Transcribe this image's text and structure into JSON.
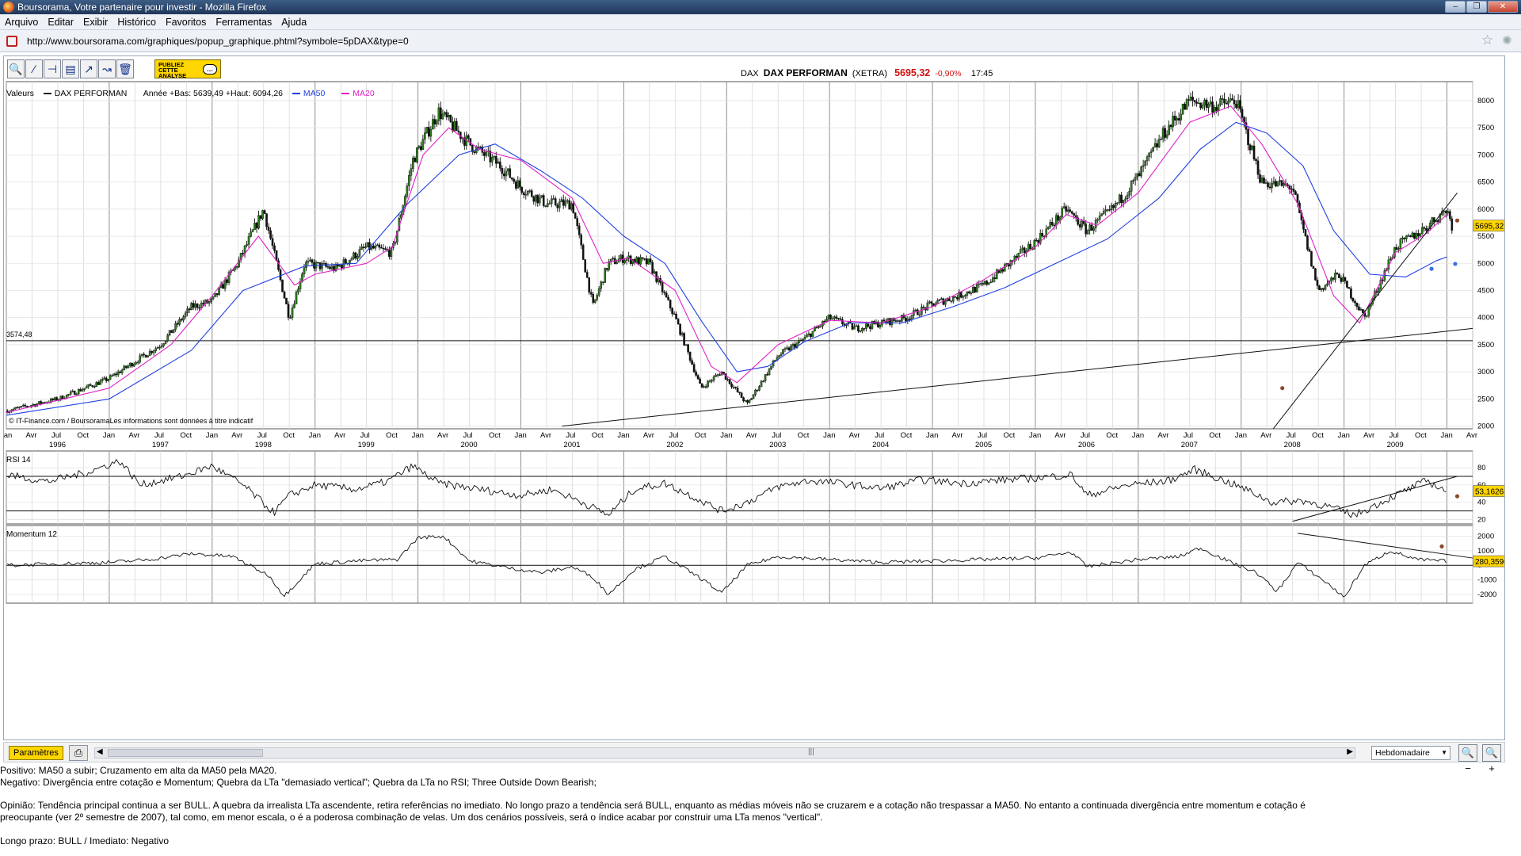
{
  "window": {
    "title": "Boursorama, Votre partenaire pour investir - Mozilla Firefox"
  },
  "menu": [
    "Arquivo",
    "Editar",
    "Exibir",
    "Histórico",
    "Favoritos",
    "Ferramentas",
    "Ajuda"
  ],
  "address": {
    "url": "http://www.boursorama.com/graphiques/popup_graphique.phtml?symbole=5pDAX&type=0"
  },
  "toolbar": {
    "publiez_label": "PUBLIEZ CETTE ANALYSE"
  },
  "quote": {
    "market": "DAX",
    "name": "DAX PERFORMAN",
    "exchange": "(XETRA)",
    "price": "5695,32",
    "change": "-0,90%",
    "time": "17:45"
  },
  "legend": {
    "values_label": "Valeurs",
    "series_label": "DAX PERFORMAN",
    "range_label": "Année +Bas: 5639,49 +Haut: 6094,26",
    "ma50_label": "MA50",
    "ma20_label": "MA20"
  },
  "colors": {
    "price": "#1a1a1a",
    "candle_up": "#2e7d1e",
    "candle_down": "#111111",
    "ma50": "#1f3fe0",
    "ma20": "#e020c8",
    "dot_brown": "#8b4a2e",
    "dot_blue": "#3d6fe0"
  },
  "chart_data": [
    {
      "type": "line",
      "title": "DAX PERFORMAN (XETRA) weekly",
      "source_note": "© IT-Finance.com / BoursoramaLes informations sont données à titre indicatif",
      "current_value_label": "5695,32",
      "horizontal_line_label": "3574,48",
      "horizontal_line_value": 3574.48,
      "ylim": [
        1950,
        8350
      ],
      "y_ticks": [
        2000,
        2500,
        3000,
        3500,
        4000,
        4500,
        5000,
        5500,
        6000,
        6500,
        7000,
        7500,
        8000
      ],
      "x_range": [
        1996.0,
        2010.25
      ],
      "month_ticks": [
        "Jan",
        "Avr",
        "Jul",
        "Oct"
      ],
      "year_labels": [
        "1996",
        "1997",
        "1998",
        "1999",
        "2000",
        "2001",
        "2002",
        "2003",
        "2004",
        "2005",
        "2006",
        "2007",
        "2008",
        "2009"
      ],
      "series": [
        {
          "name": "DAX PERFORMAN",
          "x": [
            1996.0,
            1996.5,
            1997.0,
            1997.5,
            1997.8,
            1998.0,
            1998.25,
            1998.5,
            1998.75,
            1998.9,
            1999.2,
            1999.5,
            1999.75,
            1999.95,
            2000.2,
            2000.5,
            2000.8,
            2001.0,
            2001.25,
            2001.5,
            2001.7,
            2001.85,
            2002.0,
            2002.25,
            2002.5,
            2002.75,
            2002.95,
            2003.2,
            2003.5,
            2003.75,
            2004.0,
            2004.25,
            2004.5,
            2004.75,
            2005.0,
            2005.25,
            2005.5,
            2005.75,
            2006.0,
            2006.3,
            2006.5,
            2006.75,
            2007.0,
            2007.25,
            2007.5,
            2007.75,
            2007.95,
            2008.2,
            2008.5,
            2008.75,
            2008.95,
            2009.2,
            2009.5,
            2009.75,
            2010.0,
            2010.05
          ],
          "values": [
            2280,
            2500,
            2880,
            3500,
            4200,
            4300,
            5000,
            6000,
            4000,
            5000,
            4900,
            5300,
            5200,
            6900,
            7800,
            7200,
            6800,
            6400,
            6100,
            6100,
            4200,
            5000,
            5100,
            5000,
            4000,
            2700,
            3000,
            2400,
            3300,
            3600,
            4000,
            3800,
            3900,
            4000,
            4250,
            4400,
            4600,
            5000,
            5400,
            6000,
            5600,
            6000,
            6600,
            7400,
            8000,
            7900,
            8000,
            6500,
            6400,
            4500,
            4800,
            4000,
            5300,
            5600,
            6000,
            5695
          ]
        },
        {
          "name": "MA50",
          "x": [
            1996.0,
            1997.0,
            1997.8,
            1998.3,
            1998.9,
            1999.4,
            1999.9,
            2000.4,
            2000.75,
            2001.2,
            2001.6,
            2002.0,
            2002.4,
            2002.75,
            2003.1,
            2003.4,
            2003.75,
            2004.2,
            2004.7,
            2005.2,
            2005.7,
            2006.2,
            2006.7,
            2007.2,
            2007.6,
            2007.95,
            2008.25,
            2008.6,
            2008.9,
            2009.25,
            2009.6,
            2009.9,
            2010.0
          ],
          "values": [
            2200,
            2500,
            3400,
            4500,
            4950,
            5000,
            6100,
            7000,
            7200,
            6700,
            6200,
            5500,
            5000,
            3950,
            3000,
            3100,
            3550,
            3900,
            3900,
            4200,
            4550,
            5000,
            5450,
            6200,
            7100,
            7600,
            7400,
            6800,
            5600,
            4800,
            4750,
            5050,
            5120
          ]
        },
        {
          "name": "MA20",
          "x": [
            1996.0,
            1997.0,
            1997.6,
            1998.0,
            1998.45,
            1998.8,
            1999.0,
            1999.5,
            1999.75,
            2000.05,
            2000.3,
            2000.6,
            2001.0,
            2001.5,
            2001.8,
            2002.05,
            2002.5,
            2002.85,
            2003.1,
            2003.5,
            2004.0,
            2004.5,
            2005.0,
            2005.5,
            2006.0,
            2006.3,
            2006.6,
            2007.0,
            2007.5,
            2007.9,
            2008.2,
            2008.55,
            2008.9,
            2009.15,
            2009.5,
            2009.8,
            2010.0
          ],
          "values": [
            2250,
            2700,
            3500,
            4400,
            5500,
            4600,
            4800,
            5000,
            5300,
            7000,
            7500,
            7100,
            6900,
            6200,
            5000,
            5100,
            4500,
            3100,
            2800,
            3500,
            3950,
            3900,
            4200,
            4700,
            5300,
            5900,
            5700,
            6300,
            7600,
            7900,
            7200,
            6100,
            4400,
            3900,
            5200,
            5550,
            5900
          ]
        }
      ],
      "trendlines": [
        {
          "from": [
            2001.4,
            2000
          ],
          "to": [
            2010.25,
            3800
          ]
        },
        {
          "from": [
            2008.25,
            1800
          ],
          "to": [
            2010.1,
            6300
          ]
        }
      ],
      "markers": [
        {
          "x": 2008.4,
          "y": 2700,
          "color": "dot_brown"
        },
        {
          "x": 2010.1,
          "y": 5790,
          "color": "dot_brown"
        },
        {
          "x": 2009.85,
          "y": 4900,
          "color": "dot_blue"
        },
        {
          "x": 2010.08,
          "y": 4990,
          "color": "dot_blue"
        }
      ]
    },
    {
      "type": "line",
      "title": "RSI 14",
      "current_value_label": "53,1626",
      "ylim": [
        15,
        92
      ],
      "y_ticks": [
        20,
        40,
        60,
        80
      ],
      "hlines": [
        30,
        70
      ],
      "series": [
        {
          "name": "RSI 14",
          "x": [
            1996.0,
            1996.4,
            1996.8,
            1997.1,
            1997.3,
            1997.7,
            1998.0,
            1998.3,
            1998.6,
            1998.75,
            1999.0,
            1999.4,
            1999.7,
            1999.95,
            2000.2,
            2000.6,
            2001.0,
            2001.3,
            2001.6,
            2001.85,
            2002.1,
            2002.4,
            2002.7,
            2002.95,
            2003.2,
            2003.5,
            2003.8,
            2004.1,
            2004.5,
            2004.9,
            2005.3,
            2005.7,
            2006.0,
            2006.35,
            2006.5,
            2006.9,
            2007.3,
            2007.55,
            2007.9,
            2008.1,
            2008.3,
            2008.6,
            2008.85,
            2009.1,
            2009.5,
            2009.8,
            2010.0
          ],
          "values": [
            72,
            64,
            75,
            88,
            60,
            70,
            82,
            60,
            28,
            48,
            60,
            55,
            64,
            82,
            62,
            55,
            48,
            55,
            40,
            25,
            55,
            62,
            45,
            30,
            40,
            58,
            65,
            62,
            56,
            66,
            62,
            66,
            68,
            72,
            48,
            60,
            65,
            78,
            62,
            52,
            40,
            42,
            35,
            25,
            48,
            65,
            53
          ]
        }
      ],
      "trendlines": [
        {
          "from": [
            2008.5,
            18
          ],
          "to": [
            2010.1,
            70
          ]
        }
      ],
      "markers": [
        {
          "x": 2010.1,
          "y": 47,
          "color": "dot_brown"
        }
      ]
    },
    {
      "type": "line",
      "title": "Momentum 12",
      "current_value_label": "280,3596",
      "ylim": [
        -2600,
        2300
      ],
      "y_ticks": [
        -2000,
        -1000,
        0,
        1000,
        2000
      ],
      "hlines": [
        0
      ],
      "series": [
        {
          "name": "Momentum 12",
          "x": [
            1996.0,
            1996.5,
            1997.0,
            1997.4,
            1997.8,
            1998.2,
            1998.55,
            1998.7,
            1999.0,
            1999.4,
            1999.8,
            2000.0,
            2000.25,
            2000.5,
            2000.9,
            2001.2,
            2001.5,
            2001.7,
            2001.85,
            2002.1,
            2002.4,
            2002.75,
            2002.95,
            2003.2,
            2003.5,
            2004.0,
            2004.5,
            2005.0,
            2005.5,
            2006.0,
            2006.35,
            2006.5,
            2007.0,
            2007.4,
            2007.6,
            2007.9,
            2008.15,
            2008.35,
            2008.55,
            2008.85,
            2009.0,
            2009.2,
            2009.45,
            2009.7,
            2010.0
          ],
          "values": [
            0,
            100,
            200,
            400,
            800,
            600,
            -700,
            -2100,
            100,
            300,
            400,
            1900,
            2000,
            300,
            -200,
            -500,
            -100,
            -800,
            -2000,
            -300,
            600,
            -900,
            -1900,
            0,
            600,
            400,
            200,
            300,
            400,
            500,
            900,
            -100,
            400,
            600,
            1200,
            200,
            -500,
            -1800,
            200,
            -1300,
            -2200,
            0,
            1000,
            400,
            280
          ]
        }
      ],
      "trendlines": [
        {
          "from": [
            2008.55,
            2200
          ],
          "to": [
            2010.25,
            500
          ]
        }
      ],
      "markers": [
        {
          "x": 2009.95,
          "y": 1300,
          "color": "dot_brown"
        }
      ]
    }
  ],
  "bottom": {
    "params_label": "Paramètres",
    "period_value": "Hebdomadaire"
  },
  "analysis": {
    "positivo": "Positivo: MA50 a subir; Cruzamento em alta da MA50 pela MA20.",
    "negativo": "Negativo: Divergência entre cotação e Momentum; Quebra da LTa \"demasiado vertical\"; Quebra da LTa no RSI; Three Outside Down Bearish;",
    "opiniao_1": "Opinião: Tendência principal continua a ser BULL. A quebra da irrealista LTa ascendente, retira referências no imediato. No longo prazo a tendência será BULL, enquanto as médias móveis não se cruzarem e a cotação não trespassar a MA50. No entanto a continuada divergência entre momentum e cotação é",
    "opiniao_2": "preocupante (ver 2º semestre de 2007), tal como, em menor escala, o é a poderosa combinação de velas. Um dos cenários possíveis, será o índice acabar por construir uma LTa menos \"vertical\".",
    "prazo": "Longo prazo: BULL  /  Imediato: Negativo"
  }
}
